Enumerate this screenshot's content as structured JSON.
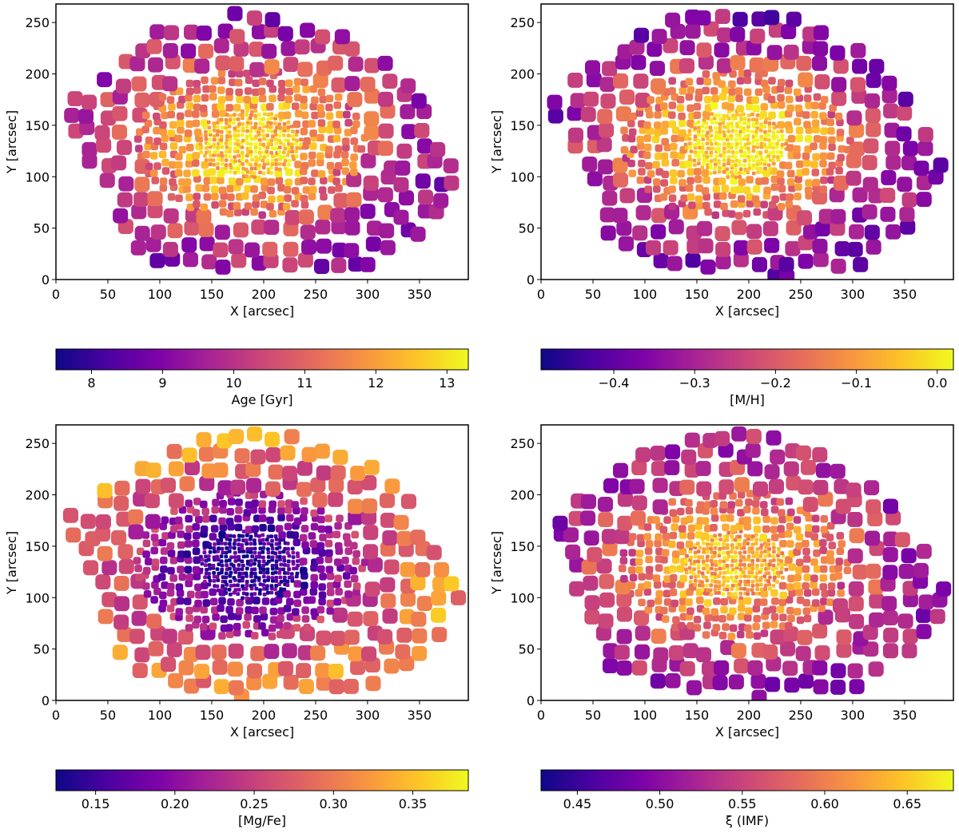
{
  "figure": {
    "layout": "2x2 grid of spatial maps, each with a horizontal colorbar below",
    "colormap": "plasma"
  },
  "chart_data": [
    {
      "type": "heatmap",
      "name": "age-map",
      "xlabel": "X [arcsec]",
      "ylabel": "Y [arcsec]",
      "xlim": [
        0,
        397
      ],
      "ylim": [
        0,
        268
      ],
      "xticks": [
        0,
        50,
        100,
        150,
        200,
        250,
        300,
        350
      ],
      "yticks": [
        0,
        50,
        100,
        150,
        200,
        250
      ],
      "center": [
        187,
        132
      ],
      "profile": "centre-high",
      "colorbar": {
        "label": "Age [Gyr]",
        "range": [
          7.5,
          13.3
        ],
        "ticks": [
          8,
          9,
          10,
          11,
          12,
          13
        ],
        "tick_labels": [
          "8",
          "9",
          "10",
          "11",
          "12",
          "13"
        ]
      },
      "value_center": 12.8,
      "value_edge": 9.0
    },
    {
      "type": "heatmap",
      "name": "metallicity-map",
      "xlabel": "X [arcsec]",
      "ylabel": "Y [arcsec]",
      "xlim": [
        0,
        397
      ],
      "ylim": [
        0,
        268
      ],
      "xticks": [
        0,
        50,
        100,
        150,
        200,
        250,
        300,
        350
      ],
      "yticks": [
        0,
        50,
        100,
        150,
        200,
        250
      ],
      "center": [
        187,
        132
      ],
      "profile": "centre-high",
      "colorbar": {
        "label": "[M/H]",
        "range": [
          -0.49,
          0.02
        ],
        "ticks": [
          -0.4,
          -0.3,
          -0.2,
          -0.1,
          0.0
        ],
        "tick_labels": [
          "−0.4",
          "−0.3",
          "−0.2",
          "−0.1",
          "0.0"
        ]
      },
      "value_center": 0.01,
      "value_edge": -0.4
    },
    {
      "type": "heatmap",
      "name": "mgfe-map",
      "xlabel": "X [arcsec]",
      "ylabel": "Y [arcsec]",
      "xlim": [
        0,
        397
      ],
      "ylim": [
        0,
        268
      ],
      "xticks": [
        0,
        50,
        100,
        150,
        200,
        250,
        300,
        350
      ],
      "yticks": [
        0,
        50,
        100,
        150,
        200,
        250
      ],
      "center": [
        187,
        132
      ],
      "profile": "centre-low",
      "colorbar": {
        "label": "[Mg/Fe]",
        "range": [
          0.125,
          0.385
        ],
        "ticks": [
          0.15,
          0.2,
          0.25,
          0.3,
          0.35
        ],
        "tick_labels": [
          "0.15",
          "0.20",
          "0.25",
          "0.30",
          "0.35"
        ]
      },
      "value_center": 0.14,
      "value_edge": 0.34
    },
    {
      "type": "heatmap",
      "name": "imf-map",
      "xlabel": "X [arcsec]",
      "ylabel": "Y [arcsec]",
      "xlim": [
        0,
        397
      ],
      "ylim": [
        0,
        268
      ],
      "xticks": [
        0,
        50,
        100,
        150,
        200,
        250,
        300,
        350
      ],
      "yticks": [
        0,
        50,
        100,
        150,
        200,
        250
      ],
      "center": [
        187,
        132
      ],
      "profile": "centre-high",
      "colorbar": {
        "label": "ξ (IMF)",
        "range": [
          0.428,
          0.678
        ],
        "ticks": [
          0.45,
          0.5,
          0.55,
          0.6,
          0.65
        ],
        "tick_labels": [
          "0.45",
          "0.50",
          "0.55",
          "0.60",
          "0.65"
        ]
      },
      "value_center": 0.64,
      "value_edge": 0.5
    }
  ]
}
